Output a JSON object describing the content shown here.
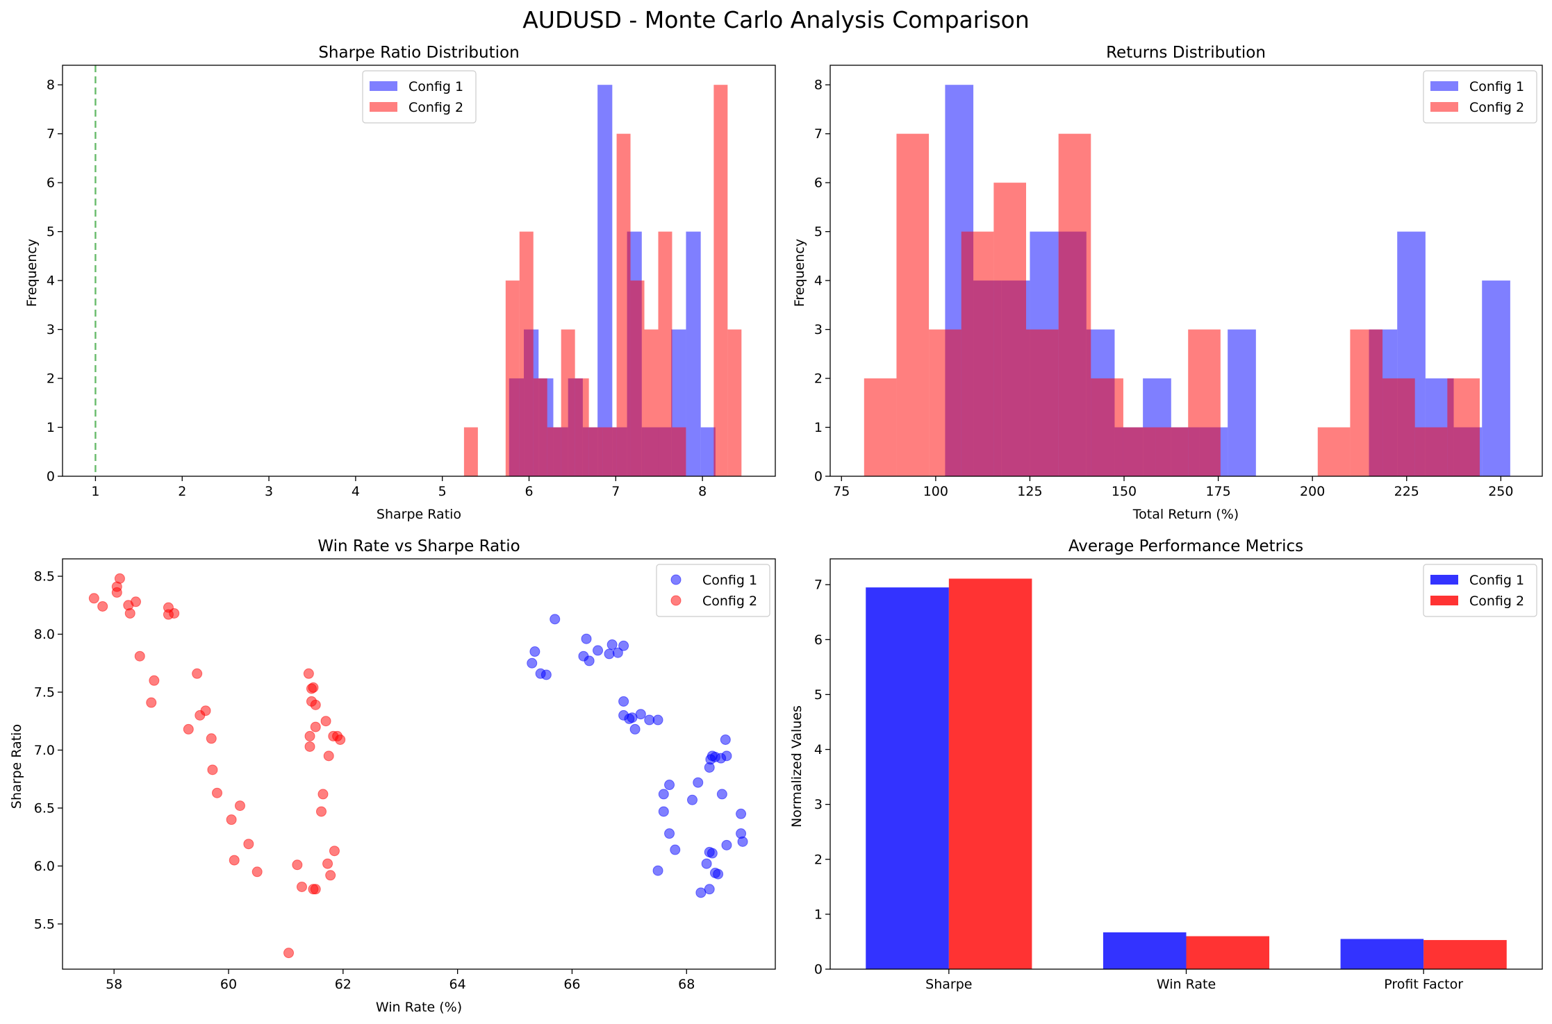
{
  "figure": {
    "title": "AUDUSD - Monte Carlo Analysis Comparison"
  },
  "colors": {
    "config1": "#0000ff",
    "config2": "#ff0000",
    "threshold": "#4caf50"
  },
  "chart_data": [
    {
      "type": "bar",
      "subtype": "histogram",
      "title": "Sharpe Ratio Distribution",
      "xlabel": "Sharpe Ratio",
      "ylabel": "Frequency",
      "xlim": [
        0.62,
        8.84
      ],
      "ylim": [
        0,
        8.4
      ],
      "xticks": [
        1,
        2,
        3,
        4,
        5,
        6,
        7,
        8
      ],
      "yticks": [
        0,
        1,
        2,
        3,
        4,
        5,
        6,
        7,
        8
      ],
      "legend": "top-center",
      "reference_line": {
        "x": 1.0,
        "style": "dashed"
      },
      "series": [
        {
          "name": "Config 1",
          "bin_edges": [
            5.77,
            5.94,
            6.11,
            6.28,
            6.45,
            6.62,
            6.79,
            6.96,
            7.13,
            7.3,
            7.47,
            7.64,
            7.81,
            7.98,
            8.15
          ],
          "counts": [
            2,
            3,
            2,
            1,
            2,
            1,
            8,
            1,
            5,
            1,
            1,
            3,
            5,
            1
          ]
        },
        {
          "name": "Config 2",
          "bin_edges": [
            5.25,
            5.41,
            5.57,
            5.73,
            5.89,
            6.05,
            6.21,
            6.37,
            6.53,
            6.69,
            6.85,
            7.01,
            7.17,
            7.33,
            7.49,
            7.65,
            7.81,
            7.97,
            8.13,
            8.29,
            8.45
          ],
          "counts": [
            1,
            0,
            0,
            4,
            5,
            2,
            1,
            3,
            2,
            1,
            1,
            7,
            4,
            3,
            5,
            1,
            0,
            0,
            8,
            3
          ]
        }
      ]
    },
    {
      "type": "bar",
      "subtype": "histogram",
      "title": "Returns Distribution",
      "xlabel": "Total Return (%)",
      "ylabel": "Frequency",
      "xlim": [
        72,
        261
      ],
      "ylim": [
        0,
        8.4
      ],
      "xticks": [
        75,
        100,
        125,
        150,
        175,
        200,
        225,
        250
      ],
      "yticks": [
        0,
        1,
        2,
        3,
        4,
        5,
        6,
        7,
        8
      ],
      "legend": "top-right",
      "series": [
        {
          "name": "Config 1",
          "bin_edges": [
            102.5,
            110.0,
            117.5,
            125.0,
            132.5,
            140.0,
            147.5,
            155.0,
            162.5,
            170.0,
            177.5,
            185.0,
            192.5,
            200.0,
            207.5,
            215.0,
            222.5,
            230.0,
            237.5,
            245.0,
            252.5
          ],
          "counts": [
            8,
            4,
            4,
            5,
            5,
            3,
            1,
            2,
            1,
            1,
            3,
            0,
            0,
            0,
            0,
            3,
            5,
            2,
            1,
            4
          ]
        },
        {
          "name": "Config 2",
          "bin_edges": [
            81,
            89.6,
            98.2,
            106.8,
            115.4,
            124.0,
            132.6,
            141.2,
            149.8,
            158.4,
            167.0,
            175.6,
            184.2,
            192.8,
            201.4,
            210.0,
            218.6,
            227.2,
            235.8,
            244.4,
            253.0
          ],
          "counts": [
            2,
            7,
            3,
            5,
            6,
            3,
            7,
            2,
            1,
            1,
            3,
            0,
            0,
            0,
            1,
            3,
            2,
            1,
            2,
            0
          ]
        }
      ]
    },
    {
      "type": "scatter",
      "title": "Win Rate vs Sharpe Ratio",
      "xlabel": "Win Rate (%)",
      "ylabel": "Sharpe Ratio",
      "xlim": [
        57.1,
        69.55
      ],
      "ylim": [
        5.11,
        8.65
      ],
      "xticks": [
        58,
        60,
        62,
        64,
        66,
        68
      ],
      "yticks": [
        5.5,
        6.0,
        6.5,
        7.0,
        7.5,
        8.0,
        8.5
      ],
      "legend": "top-right",
      "series": [
        {
          "name": "Config 1",
          "points": [
            [
              65.3,
              7.75
            ],
            [
              65.35,
              7.85
            ],
            [
              65.45,
              7.66
            ],
            [
              65.55,
              7.65
            ],
            [
              65.7,
              8.13
            ],
            [
              66.2,
              7.81
            ],
            [
              66.25,
              7.96
            ],
            [
              66.3,
              7.77
            ],
            [
              66.45,
              7.86
            ],
            [
              66.65,
              7.83
            ],
            [
              66.7,
              7.91
            ],
            [
              66.8,
              7.84
            ],
            [
              66.9,
              7.9
            ],
            [
              66.9,
              7.42
            ],
            [
              66.9,
              7.3
            ],
            [
              67.0,
              7.27
            ],
            [
              67.05,
              7.28
            ],
            [
              67.1,
              7.18
            ],
            [
              67.2,
              7.31
            ],
            [
              67.35,
              7.26
            ],
            [
              67.5,
              7.26
            ],
            [
              67.5,
              5.96
            ],
            [
              67.6,
              6.62
            ],
            [
              67.6,
              6.47
            ],
            [
              67.7,
              6.7
            ],
            [
              67.7,
              6.28
            ],
            [
              67.8,
              6.14
            ],
            [
              68.1,
              6.57
            ],
            [
              68.2,
              6.72
            ],
            [
              68.25,
              5.77
            ],
            [
              68.35,
              6.02
            ],
            [
              68.4,
              6.85
            ],
            [
              68.42,
              6.92
            ],
            [
              68.45,
              6.95
            ],
            [
              68.5,
              6.94
            ],
            [
              68.45,
              6.11
            ],
            [
              68.4,
              6.12
            ],
            [
              68.4,
              5.8
            ],
            [
              68.5,
              5.94
            ],
            [
              68.55,
              5.93
            ],
            [
              68.6,
              6.93
            ],
            [
              68.62,
              6.62
            ],
            [
              68.68,
              7.09
            ],
            [
              68.7,
              6.95
            ],
            [
              68.7,
              6.18
            ],
            [
              68.95,
              6.45
            ],
            [
              68.95,
              6.28
            ],
            [
              68.98,
              6.21
            ]
          ]
        },
        {
          "name": "Config 2",
          "points": [
            [
              57.65,
              8.31
            ],
            [
              57.8,
              8.24
            ],
            [
              58.05,
              8.36
            ],
            [
              58.05,
              8.41
            ],
            [
              58.1,
              8.48
            ],
            [
              58.25,
              8.25
            ],
            [
              58.28,
              8.18
            ],
            [
              58.38,
              8.28
            ],
            [
              58.45,
              7.81
            ],
            [
              58.65,
              7.41
            ],
            [
              58.7,
              7.6
            ],
            [
              58.95,
              8.23
            ],
            [
              58.95,
              8.17
            ],
            [
              59.05,
              8.18
            ],
            [
              59.3,
              7.18
            ],
            [
              59.45,
              7.66
            ],
            [
              59.5,
              7.3
            ],
            [
              59.6,
              7.34
            ],
            [
              59.7,
              7.1
            ],
            [
              59.72,
              6.83
            ],
            [
              59.8,
              6.63
            ],
            [
              60.05,
              6.4
            ],
            [
              60.1,
              6.05
            ],
            [
              60.2,
              6.52
            ],
            [
              60.35,
              6.19
            ],
            [
              60.5,
              5.95
            ],
            [
              61.05,
              5.25
            ],
            [
              61.2,
              6.01
            ],
            [
              61.28,
              5.82
            ],
            [
              61.4,
              7.66
            ],
            [
              61.42,
              7.12
            ],
            [
              61.42,
              7.03
            ],
            [
              61.45,
              7.42
            ],
            [
              61.45,
              7.53
            ],
            [
              61.48,
              7.54
            ],
            [
              61.48,
              5.8
            ],
            [
              61.52,
              7.39
            ],
            [
              61.52,
              5.8
            ],
            [
              61.52,
              7.2
            ],
            [
              61.62,
              6.47
            ],
            [
              61.65,
              6.62
            ],
            [
              61.7,
              7.25
            ],
            [
              61.73,
              6.02
            ],
            [
              61.75,
              6.95
            ],
            [
              61.78,
              5.92
            ],
            [
              61.83,
              7.12
            ],
            [
              61.85,
              6.13
            ],
            [
              61.9,
              7.12
            ],
            [
              61.95,
              7.09
            ]
          ]
        }
      ]
    },
    {
      "type": "bar",
      "title": "Average Performance Metrics",
      "xlabel": "",
      "ylabel": "Normalized Values",
      "categories": [
        "Sharpe",
        "Win Rate",
        "Profit Factor"
      ],
      "ylim": [
        0,
        7.47
      ],
      "yticks": [
        0,
        1,
        2,
        3,
        4,
        5,
        6,
        7
      ],
      "legend": "top-right",
      "series": [
        {
          "name": "Config 1",
          "values": [
            6.95,
            0.67,
            0.55
          ]
        },
        {
          "name": "Config 2",
          "values": [
            7.11,
            0.6,
            0.53
          ]
        }
      ]
    }
  ]
}
